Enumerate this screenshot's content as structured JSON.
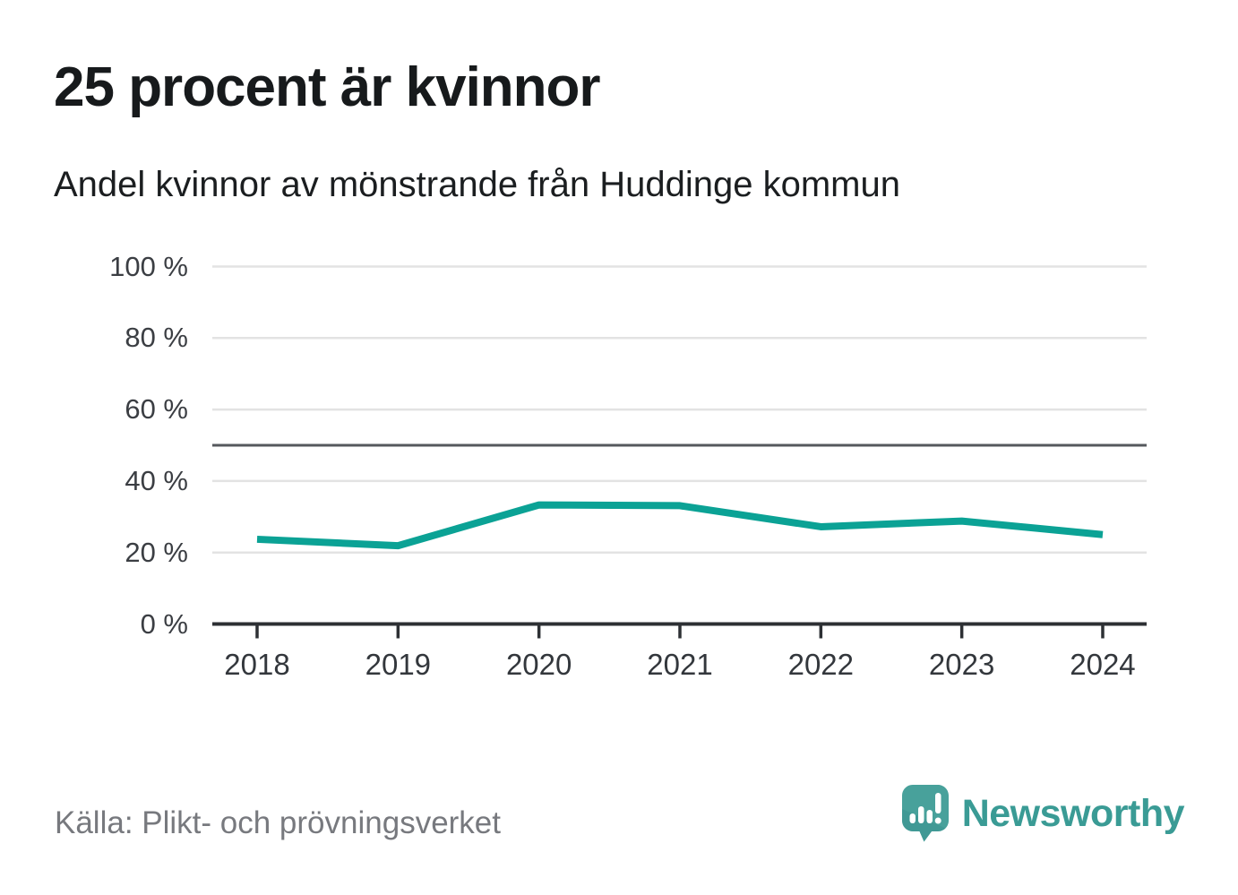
{
  "source": "Källa: Plikt- och prövningsverket",
  "branding": {
    "logo_text": "Newsworthy",
    "logo_icon": "newsworthy-speech-bubble-barchart-icon"
  },
  "colors": {
    "line": "#0ba295",
    "grid": "#e3e3e3",
    "reference": "#55585d",
    "axis": "#2d3034",
    "tick_text": "#3b3e43",
    "title_text": "#171a1c",
    "source_text": "#77797e",
    "brand": "#3a9b95",
    "logo_bubble": "#48a19b",
    "logo_bubble_shade": "#3a948f"
  },
  "chart_data": {
    "type": "line",
    "title": "25 procent är kvinnor",
    "subtitle": "Andel kvinnor av mönstrande från Huddinge kommun",
    "categories": [
      "2018",
      "2019",
      "2020",
      "2021",
      "2022",
      "2023",
      "2024"
    ],
    "series": [
      {
        "name": "Andel kvinnor av mönstrande",
        "color": "#0ba295",
        "values": [
          23.7,
          21.9,
          33.3,
          33.1,
          27.2,
          28.8,
          25.0
        ]
      }
    ],
    "ylim": [
      0,
      100
    ],
    "y_ticks": [
      0,
      20,
      40,
      60,
      80,
      100
    ],
    "y_tick_labels": [
      "0 %",
      "20 %",
      "40 %",
      "60 %",
      "80 %",
      "100 %"
    ],
    "reference_line": 50,
    "grid": true,
    "legend": false
  }
}
